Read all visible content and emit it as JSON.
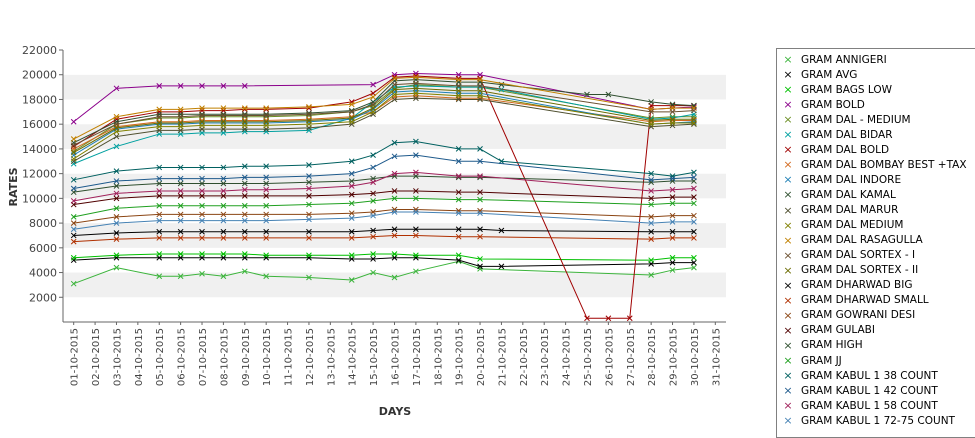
{
  "chart_data": {
    "type": "line",
    "xlabel": "DAYS",
    "ylabel": "RATES",
    "ylim": [
      0,
      22000
    ],
    "yticks": [
      2000,
      4000,
      6000,
      8000,
      10000,
      12000,
      14000,
      16000,
      18000,
      20000,
      22000
    ],
    "categories": [
      "01-10-2015",
      "02-10-2015",
      "03-10-2015",
      "04-10-2015",
      "05-10-2015",
      "06-10-2015",
      "07-10-2015",
      "08-10-2015",
      "09-10-2015",
      "10-10-2015",
      "11-10-2015",
      "12-10-2015",
      "13-10-2015",
      "14-10-2015",
      "15-10-2015",
      "16-10-2015",
      "17-10-2015",
      "18-10-2015",
      "19-10-2015",
      "20-10-2015",
      "21-10-2015",
      "22-10-2015",
      "23-10-2015",
      "24-10-2015",
      "25-10-2015",
      "26-10-2015",
      "27-10-2015",
      "28-10-2015",
      "29-10-2015",
      "30-10-2015",
      "31-10-2015"
    ],
    "grid": "alternating horizontal bands",
    "legend_position": "right",
    "series": [
      {
        "name": "GRAM ANNIGERI",
        "color": "#3cb43c",
        "values": [
          3100,
          null,
          4400,
          null,
          3700,
          3700,
          3900,
          3700,
          4100,
          3700,
          null,
          3600,
          null,
          3400,
          4000,
          3600,
          4100,
          null,
          4900,
          4300,
          null,
          null,
          null,
          null,
          null,
          null,
          null,
          3800,
          4200,
          4400,
          null
        ]
      },
      {
        "name": "GRAM AVG",
        "color": "#000000",
        "values": [
          5000,
          null,
          5200,
          null,
          5200,
          5200,
          5200,
          5200,
          5200,
          5200,
          null,
          5200,
          null,
          5100,
          5100,
          5200,
          5200,
          null,
          5000,
          4500,
          4500,
          null,
          null,
          null,
          null,
          null,
          null,
          4700,
          4800,
          4800,
          null
        ]
      },
      {
        "name": "GRAM BAGS LOW",
        "color": "#00c000",
        "values": [
          5200,
          null,
          5400,
          null,
          5500,
          5500,
          5500,
          5500,
          5500,
          5400,
          null,
          5400,
          null,
          5400,
          5500,
          5500,
          5400,
          null,
          5400,
          5100,
          null,
          null,
          null,
          null,
          null,
          null,
          null,
          5000,
          5200,
          5200,
          null
        ]
      },
      {
        "name": "GRAM BOLD",
        "color": "#8b008b",
        "values": [
          16200,
          null,
          18900,
          null,
          19100,
          19100,
          19100,
          19100,
          19100,
          null,
          null,
          null,
          null,
          null,
          19200,
          20000,
          20100,
          null,
          20000,
          20000,
          null,
          null,
          null,
          null,
          null,
          null,
          null,
          17200,
          17300,
          17400,
          null
        ]
      },
      {
        "name": "GRAM DAL - MEDIUM",
        "color": "#6b8e23",
        "values": [
          13800,
          null,
          16000,
          null,
          16500,
          16500,
          16600,
          16600,
          16600,
          16600,
          null,
          16700,
          null,
          17000,
          17500,
          18900,
          19200,
          null,
          19000,
          19000,
          null,
          null,
          null,
          null,
          null,
          null,
          null,
          16500,
          16600,
          16600,
          null
        ]
      },
      {
        "name": "GRAM DAL BIDAR",
        "color": "#00a0a0",
        "values": [
          12800,
          null,
          14200,
          null,
          15200,
          15200,
          15300,
          15300,
          15400,
          15400,
          null,
          15500,
          null,
          16500,
          17800,
          19000,
          19100,
          null,
          19000,
          19000,
          18800,
          null,
          null,
          null,
          null,
          null,
          null,
          16400,
          16500,
          16800,
          null
        ]
      },
      {
        "name": "GRAM DAL BOLD",
        "color": "#a00000",
        "values": [
          14200,
          null,
          16400,
          null,
          17000,
          17000,
          17100,
          17100,
          17200,
          17200,
          null,
          17300,
          null,
          17800,
          18500,
          19800,
          19900,
          null,
          19700,
          19700,
          null,
          null,
          null,
          null,
          300,
          300,
          300,
          17500,
          17500,
          17500,
          null
        ]
      },
      {
        "name": "GRAM DAL BOMBAY BEST +TAX",
        "color": "#d2691e",
        "values": [
          14000,
          null,
          15800,
          null,
          16200,
          16200,
          16300,
          16300,
          16300,
          16300,
          null,
          16400,
          null,
          16600,
          17000,
          18200,
          18300,
          null,
          18100,
          18100,
          null,
          null,
          null,
          null,
          null,
          null,
          null,
          16200,
          16300,
          16300,
          null
        ]
      },
      {
        "name": "GRAM DAL INDORE",
        "color": "#1e7fb4",
        "values": [
          13500,
          null,
          15600,
          null,
          16000,
          16000,
          16100,
          16100,
          16100,
          16100,
          null,
          16200,
          null,
          16400,
          17200,
          18600,
          18700,
          null,
          18500,
          18500,
          null,
          null,
          null,
          null,
          null,
          null,
          null,
          16000,
          16100,
          16200,
          null
        ]
      },
      {
        "name": "GRAM DAL KAMAL",
        "color": "#2f4f2f",
        "values": [
          14500,
          null,
          16200,
          null,
          16800,
          16800,
          16800,
          16800,
          16800,
          16800,
          null,
          16900,
          null,
          17100,
          17800,
          19500,
          19600,
          null,
          19400,
          19400,
          19200,
          null,
          null,
          null,
          18400,
          18400,
          null,
          17800,
          17600,
          17500,
          null
        ]
      },
      {
        "name": "GRAM DAL MARUR",
        "color": "#4f4f2f",
        "values": [
          13000,
          null,
          15000,
          null,
          15500,
          15500,
          15600,
          15600,
          15600,
          15600,
          null,
          15700,
          null,
          16000,
          16800,
          18000,
          18100,
          null,
          18000,
          18000,
          null,
          null,
          null,
          null,
          null,
          null,
          null,
          15800,
          15900,
          16000,
          null
        ]
      },
      {
        "name": "GRAM DAL MEDIUM",
        "color": "#808000",
        "values": [
          13200,
          null,
          15400,
          null,
          15800,
          15800,
          15900,
          15900,
          15900,
          15900,
          null,
          16000,
          null,
          16200,
          17000,
          18400,
          18500,
          null,
          18300,
          18300,
          null,
          null,
          null,
          null,
          null,
          null,
          null,
          16000,
          16100,
          16100,
          null
        ]
      },
      {
        "name": "GRAM DAL RASAGULLA",
        "color": "#c08000",
        "values": [
          14800,
          null,
          16600,
          null,
          17200,
          17200,
          17300,
          17300,
          17300,
          17300,
          null,
          17400,
          null,
          17600,
          18200,
          19700,
          19800,
          null,
          19600,
          19600,
          null,
          null,
          null,
          null,
          null,
          null,
          null,
          17200,
          17300,
          17300,
          null
        ]
      },
      {
        "name": "GRAM DAL SORTEX  - I",
        "color": "#6a4f2f",
        "values": [
          14300,
          null,
          16000,
          null,
          16600,
          16600,
          16700,
          16700,
          16700,
          16700,
          null,
          16800,
          null,
          17000,
          17600,
          19200,
          19300,
          null,
          19100,
          19100,
          null,
          null,
          null,
          null,
          null,
          null,
          null,
          17000,
          17000,
          17100,
          null
        ]
      },
      {
        "name": "GRAM DAL SORTEX - II",
        "color": "#6b6b00",
        "values": [
          13700,
          null,
          15700,
          null,
          16100,
          16100,
          16200,
          16200,
          16200,
          16200,
          null,
          16300,
          null,
          16500,
          17300,
          18800,
          18900,
          null,
          18700,
          18700,
          null,
          null,
          null,
          null,
          null,
          null,
          null,
          16300,
          16400,
          16400,
          null
        ]
      },
      {
        "name": "GRAM DHARWAD BIG",
        "color": "#000000",
        "values": [
          7000,
          null,
          7200,
          null,
          7300,
          7300,
          7300,
          7300,
          7300,
          7300,
          null,
          7300,
          null,
          7300,
          7400,
          7500,
          7500,
          null,
          7500,
          7500,
          7400,
          null,
          null,
          null,
          null,
          null,
          null,
          7300,
          7300,
          7300,
          null
        ]
      },
      {
        "name": "GRAM DHARWAD SMALL",
        "color": "#b03000",
        "values": [
          6500,
          null,
          6700,
          null,
          6800,
          6800,
          6800,
          6800,
          6800,
          6800,
          null,
          6800,
          null,
          6800,
          6900,
          7000,
          7000,
          null,
          6900,
          6900,
          null,
          null,
          null,
          null,
          null,
          null,
          null,
          6700,
          6800,
          6800,
          null
        ]
      },
      {
        "name": "GRAM GOWRANI DESI",
        "color": "#8b4513",
        "values": [
          8000,
          null,
          8500,
          null,
          8700,
          8700,
          8700,
          8700,
          8700,
          8700,
          null,
          8700,
          null,
          8800,
          8900,
          9100,
          9100,
          null,
          9000,
          9000,
          null,
          null,
          null,
          null,
          null,
          null,
          null,
          8500,
          8600,
          8600,
          null
        ]
      },
      {
        "name": "GRAM GULABI",
        "color": "#500000",
        "values": [
          9500,
          null,
          10000,
          null,
          10200,
          10200,
          10200,
          10200,
          10200,
          10200,
          null,
          10200,
          null,
          10300,
          10400,
          10600,
          10600,
          null,
          10500,
          10500,
          null,
          null,
          null,
          null,
          null,
          null,
          null,
          10000,
          10100,
          10100,
          null
        ]
      },
      {
        "name": "GRAM HIGH",
        "color": "#2f4f2f",
        "values": [
          10500,
          null,
          11000,
          null,
          11200,
          11200,
          11200,
          11200,
          11200,
          11200,
          null,
          11300,
          null,
          11400,
          11600,
          11800,
          11800,
          null,
          11700,
          11700,
          null,
          null,
          null,
          null,
          null,
          null,
          null,
          11300,
          11400,
          11400,
          null
        ]
      },
      {
        "name": "GRAM JJ",
        "color": "#20a020",
        "values": [
          8500,
          null,
          9200,
          null,
          9400,
          9400,
          9400,
          9400,
          9400,
          9400,
          null,
          9500,
          null,
          9600,
          9800,
          10000,
          10000,
          null,
          9900,
          9900,
          null,
          null,
          null,
          null,
          null,
          null,
          null,
          9500,
          9600,
          9600,
          null
        ]
      },
      {
        "name": "GRAM KABUL 1 38 COUNT",
        "color": "#006060",
        "values": [
          11500,
          null,
          12200,
          null,
          12500,
          12500,
          12500,
          12500,
          12600,
          12600,
          null,
          12700,
          null,
          13000,
          13500,
          14500,
          14600,
          null,
          14000,
          14000,
          13000,
          null,
          null,
          null,
          null,
          null,
          null,
          12000,
          11800,
          12100,
          null
        ]
      },
      {
        "name": "GRAM KABUL 1 42 COUNT",
        "color": "#1e5a8c",
        "values": [
          10800,
          null,
          11400,
          null,
          11600,
          11600,
          11600,
          11600,
          11700,
          11700,
          null,
          11800,
          null,
          12000,
          12500,
          13400,
          13500,
          null,
          13000,
          13000,
          null,
          null,
          null,
          null,
          null,
          null,
          null,
          11500,
          11600,
          11700,
          null
        ]
      },
      {
        "name": "GRAM KABUL 1 58 COUNT",
        "color": "#a0205a",
        "values": [
          9800,
          null,
          10400,
          null,
          10600,
          10600,
          10600,
          10600,
          10700,
          10700,
          null,
          10800,
          null,
          11000,
          11300,
          12000,
          12100,
          null,
          11800,
          11800,
          null,
          null,
          null,
          null,
          null,
          null,
          null,
          10600,
          10700,
          10800,
          null
        ]
      },
      {
        "name": "GRAM KABUL 1 72-75 COUNT",
        "color": "#4682b4",
        "values": [
          7500,
          null,
          8000,
          null,
          8200,
          8200,
          8200,
          8200,
          8200,
          8200,
          null,
          8300,
          null,
          8400,
          8600,
          8900,
          8900,
          null,
          8800,
          8800,
          null,
          null,
          null,
          null,
          null,
          null,
          null,
          8000,
          8100,
          8100,
          null
        ]
      }
    ]
  }
}
